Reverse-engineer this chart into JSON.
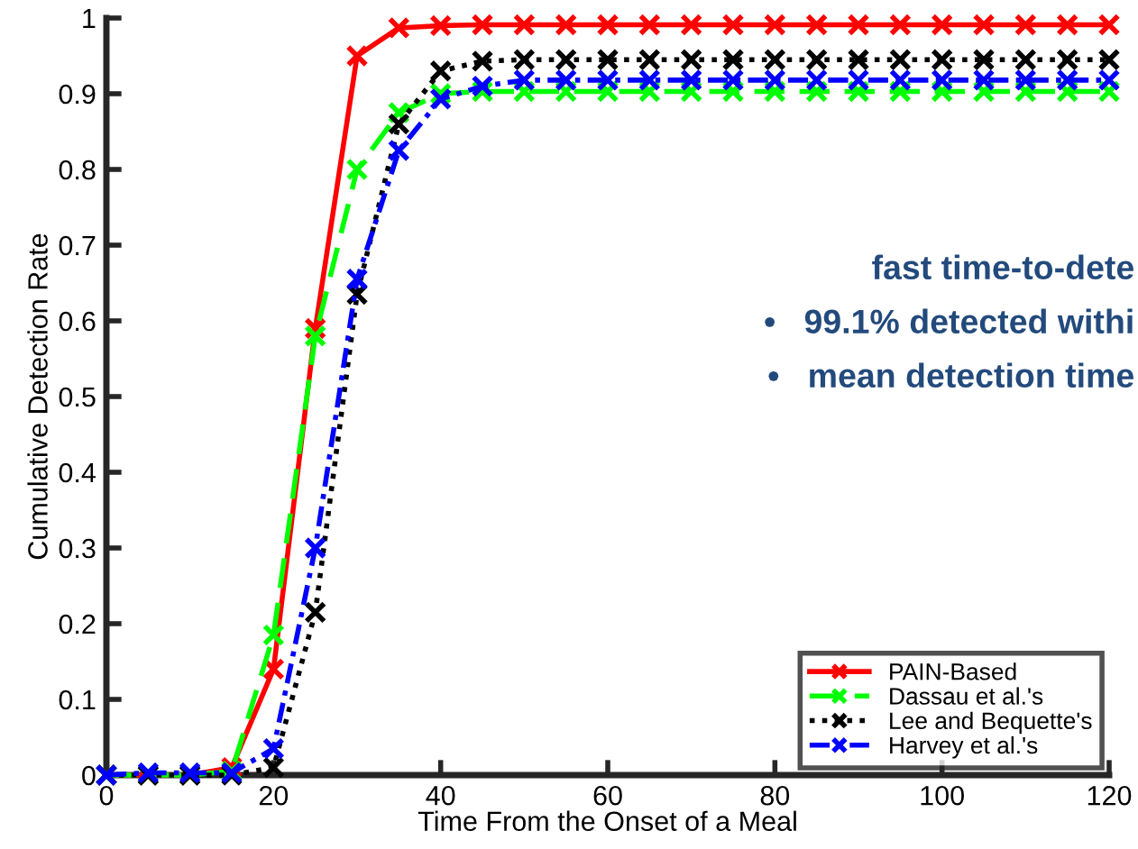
{
  "chart_data": {
    "type": "line",
    "xlabel": "Time From the Onset of a Meal",
    "ylabel": "Cumulative Detection Rate",
    "x": [
      0,
      5,
      10,
      15,
      20,
      25,
      30,
      35,
      40,
      45,
      50,
      55,
      60,
      65,
      70,
      75,
      80,
      85,
      90,
      95,
      100,
      105,
      110,
      115,
      120
    ],
    "series": [
      {
        "name": "PAIN-Based",
        "color": "#ff0000",
        "line_style": "solid",
        "values": [
          0,
          0,
          0,
          0.01,
          0.14,
          0.59,
          0.95,
          0.987,
          0.99,
          0.991,
          0.991,
          0.991,
          0.991,
          0.991,
          0.991,
          0.991,
          0.991,
          0.991,
          0.991,
          0.991,
          0.991,
          0.991,
          0.991,
          0.991,
          0.991
        ]
      },
      {
        "name": "Dassau et al.'s",
        "color": "#00ff00",
        "line_style": "dashed",
        "values": [
          0,
          0,
          0,
          0.005,
          0.185,
          0.58,
          0.8,
          0.875,
          0.9,
          0.903,
          0.903,
          0.903,
          0.903,
          0.903,
          0.903,
          0.903,
          0.903,
          0.903,
          0.903,
          0.903,
          0.903,
          0.903,
          0.903,
          0.903,
          0.903
        ]
      },
      {
        "name": "Lee and Bequette's",
        "color": "#000000",
        "line_style": "dotted",
        "values": [
          0,
          0,
          0,
          0,
          0.01,
          0.215,
          0.635,
          0.86,
          0.93,
          0.943,
          0.945,
          0.945,
          0.945,
          0.945,
          0.945,
          0.945,
          0.945,
          0.945,
          0.945,
          0.945,
          0.945,
          0.945,
          0.945,
          0.945,
          0.945
        ]
      },
      {
        "name": "Harvey et al.'s",
        "color": "#0000ff",
        "line_style": "dashdot",
        "values": [
          0,
          0.003,
          0.003,
          0.003,
          0.035,
          0.3,
          0.655,
          0.825,
          0.893,
          0.91,
          0.918,
          0.918,
          0.918,
          0.918,
          0.918,
          0.918,
          0.918,
          0.918,
          0.918,
          0.918,
          0.918,
          0.918,
          0.918,
          0.918,
          0.918
        ]
      }
    ],
    "marker": "cross",
    "xlim": [
      0,
      120
    ],
    "ylim": [
      0,
      1
    ],
    "xticks": [
      0,
      20,
      40,
      60,
      80,
      100,
      120
    ],
    "yticks": [
      0,
      0.1,
      0.2,
      0.3,
      0.4,
      0.5,
      0.6,
      0.7,
      0.8,
      0.9,
      1
    ],
    "grid": false,
    "legend": "bottom right",
    "annotations": [
      "fast time-to-dete",
      "•   99.1% detected withi",
      "•   mean detection time"
    ]
  }
}
